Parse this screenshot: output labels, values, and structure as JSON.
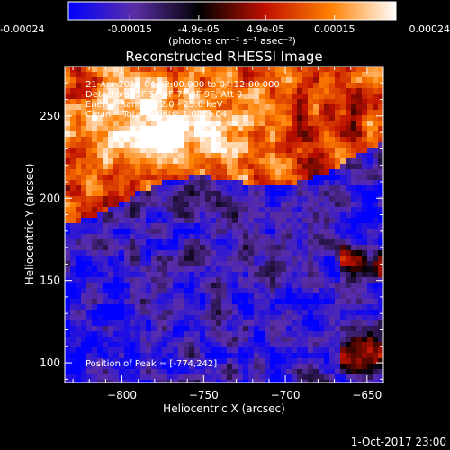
{
  "chart_data": {
    "type": "heatmap",
    "title": "Reconstructed RHESSI Image",
    "xlabel": "Heliocentric X (arcsec)",
    "ylabel": "Heliocentric Y (arcsec)",
    "xlim": [
      -835,
      -640
    ],
    "ylim": [
      88,
      280
    ],
    "x_ticks": [
      -800,
      -750,
      -700,
      -650
    ],
    "y_ticks": [
      100,
      150,
      200,
      250
    ],
    "colorbar": {
      "ticks": [
        -0.00024,
        -0.00015,
        -4.9e-05,
        4.9e-05,
        0.00015,
        0.00024
      ],
      "tick_labels": [
        "-0.00024",
        "-0.00015",
        "-4.9e-05",
        "4.9e-05",
        "0.00015",
        "0.00024"
      ],
      "label": "(photons cm⁻² s⁻¹ asec⁻²)",
      "range": [
        -0.00024,
        0.00024
      ],
      "colors": [
        "#0000ff",
        "#5b2ea8",
        "#000000",
        "#c01000",
        "#ff8000",
        "#ffffff"
      ]
    },
    "annotations": [
      "21-Apr-2018 04:02:00.000 to 04:12:00.000",
      "Detectors: 3F 5F 6F 7F 8F 9F, Att 0",
      "Energy Range: 12.0 - 25.0 keV",
      "Clean    Total counts: 1.08E+04"
    ],
    "peak_label": "Position of Peak = [-774,242]",
    "peak": [
      -774,
      242
    ],
    "timestamp": "1-Oct-2017 23:00"
  }
}
